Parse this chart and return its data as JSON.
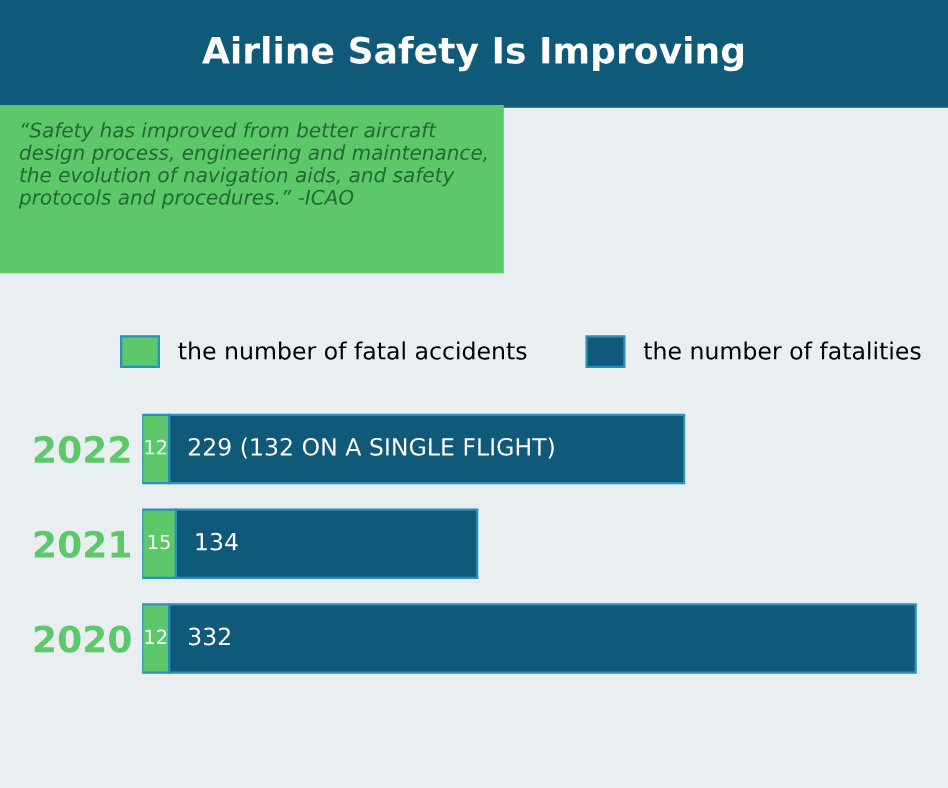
{
  "chart_data": {
    "type": "bar",
    "orientation": "horizontal",
    "stacked": true,
    "title": "Airline Safety Is Improving",
    "annotations": [
      "“Safety has improved from better aircraft design process, engineering and maintenance, the evolution of navigation aids, and safety protocols and procedures.” -ICAO"
    ],
    "categories": [
      "2022",
      "2021",
      "2020"
    ],
    "series": [
      {
        "name": "the number of fatal accidents",
        "color": "#5cc86a",
        "values": [
          12,
          15,
          12
        ],
        "value_labels": [
          "12",
          "15",
          "12"
        ]
      },
      {
        "name": "the number of fatalities",
        "color": "#0f5a78",
        "values": [
          229,
          134,
          332
        ],
        "value_labels": [
          "229 (132 ON A SINGLE FLIGHT)",
          "134",
          "332"
        ]
      }
    ],
    "legend": "top",
    "grid": false
  }
}
